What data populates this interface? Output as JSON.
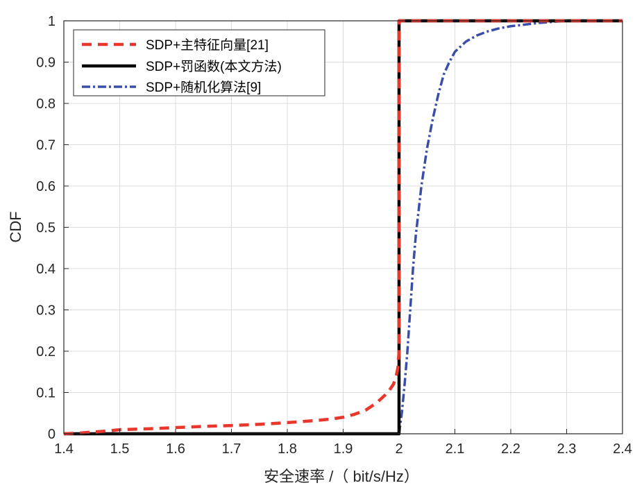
{
  "chart_data": {
    "type": "line",
    "xlabel": "安全速率 /（ bit/s/Hz）",
    "ylabel": "CDF",
    "xlim": [
      1.4,
      2.4
    ],
    "ylim": [
      0,
      1
    ],
    "xticks": [
      "1.4",
      "1.5",
      "1.6",
      "1.7",
      "1.8",
      "1.9",
      "2",
      "2.1",
      "2.2",
      "2.3",
      "2.4"
    ],
    "yticks": [
      "0",
      "0.1",
      "0.2",
      "0.3",
      "0.4",
      "0.5",
      "0.6",
      "0.7",
      "0.8",
      "0.9",
      "1"
    ],
    "grid": true,
    "legend_position": "top-left",
    "series": [
      {
        "name": "SDP+主特征向量[21]",
        "color": "#e8372c",
        "style": "dashed",
        "x": [
          1.4,
          1.43,
          1.45,
          1.48,
          1.5,
          1.55,
          1.6,
          1.65,
          1.7,
          1.75,
          1.8,
          1.85,
          1.88,
          1.9,
          1.92,
          1.94,
          1.96,
          1.98,
          1.99,
          1.995,
          1.998,
          2.0,
          2.0,
          2.4
        ],
        "y": [
          0,
          0.002,
          0.004,
          0.007,
          0.01,
          0.012,
          0.015,
          0.018,
          0.02,
          0.023,
          0.027,
          0.032,
          0.036,
          0.04,
          0.047,
          0.057,
          0.075,
          0.1,
          0.12,
          0.14,
          0.16,
          0.2,
          1.0,
          1.0
        ]
      },
      {
        "name": "SDP+罚函数(本文方法)",
        "color": "#000000",
        "style": "solid",
        "x": [
          1.4,
          2.0,
          2.0,
          2.4
        ],
        "y": [
          0,
          0,
          1,
          1
        ]
      },
      {
        "name": "SDP+随机化算法[9]",
        "color": "#3a4ea8",
        "style": "dashdot",
        "x": [
          2.0,
          2.005,
          2.01,
          2.015,
          2.02,
          2.025,
          2.03,
          2.04,
          2.05,
          2.06,
          2.07,
          2.08,
          2.09,
          2.1,
          2.12,
          2.14,
          2.16,
          2.18,
          2.2,
          2.22,
          2.25,
          2.28,
          2.3,
          2.4
        ],
        "y": [
          0,
          0.05,
          0.12,
          0.2,
          0.3,
          0.4,
          0.48,
          0.6,
          0.69,
          0.76,
          0.82,
          0.87,
          0.9,
          0.925,
          0.95,
          0.965,
          0.975,
          0.982,
          0.987,
          0.99,
          0.995,
          0.998,
          1.0,
          1.0
        ]
      }
    ]
  }
}
